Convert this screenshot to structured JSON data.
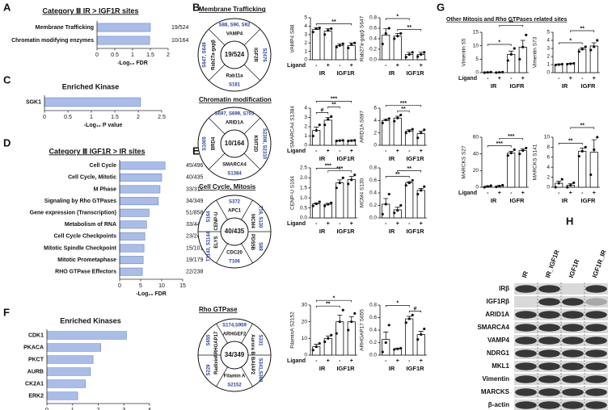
{
  "panel_labels": [
    "A",
    "B",
    "C",
    "D",
    "E",
    "F",
    "G",
    "H"
  ],
  "g_title": "Other Mitosis and Rho GTPases related sites",
  "chart_data": [
    {
      "type": "hbar",
      "title": "Category Ⅲ IR > IGF1R sites",
      "categories": [
        "Membrane Trafficking",
        "Chromatin modifying enzymes"
      ],
      "values": [
        1.5,
        1.48
      ],
      "counts": [
        "19/524",
        "10/164"
      ],
      "xlim": [
        0,
        2
      ],
      "xticks": [
        0,
        0.5,
        1,
        1.5,
        2
      ],
      "x_label": "-Log₁₀ FDR",
      "color": "#a9bde8"
    },
    {
      "type": "hbar",
      "title": "Enriched Kinase",
      "categories": [
        "SGK1"
      ],
      "values": [
        2.05
      ],
      "xlim": [
        0,
        2.5
      ],
      "xticks": [
        0,
        0.5,
        1,
        1.5,
        2,
        2.5
      ],
      "x_label": "-Log₁₀ P value",
      "color": "#a9bde8"
    },
    {
      "type": "hbar",
      "title": "Category Ⅲ IGF1R > IR sites",
      "categories": [
        "Cell Cycle",
        "Cell Cycle, Mitotic",
        "M Phase",
        "Signaling by Rho GTPases",
        "Gene expression (Transcription)",
        "Metabolism of RNA",
        "Cell Cycle Checkpoints",
        "Mitotic Spindle Checkpoint",
        "Mitotic Prometaphase",
        "RHO GTPase Effectors"
      ],
      "values": [
        10.8,
        10,
        9.6,
        9.2,
        7,
        6.4,
        6,
        5.8,
        5.6,
        5.4
      ],
      "counts": [
        "45/496",
        "40/435",
        "33/317",
        "34/349",
        "51/858",
        "33/448",
        "23/240",
        "15/101",
        "19/179",
        "22/238"
      ],
      "xlim": [
        0,
        15
      ],
      "xticks": [
        0,
        5,
        10,
        15
      ],
      "x_label": "-Log₁₀ FDR",
      "color": "#a9bde8"
    },
    {
      "type": "hbar",
      "title": "Enriched Kinases",
      "categories": [
        "CDK1",
        "PKACA",
        "PKCT",
        "AURB",
        "CK2A1",
        "ERK2"
      ],
      "values": [
        3.1,
        2.1,
        1.8,
        1.7,
        1.5,
        1.2
      ],
      "xlim": [
        0,
        4
      ],
      "xticks": [
        0,
        1,
        2,
        3,
        4
      ],
      "x_label": "-Log₁₀ P value",
      "color": "#a9bde8"
    },
    {
      "type": "bar",
      "y_label": "VAMP4 S88",
      "row_label": "Ligand",
      "categories": [
        "-",
        "+",
        "-",
        "+"
      ],
      "groups": [
        "IR",
        "IGF1R"
      ],
      "values": [
        3.6,
        3.4,
        1.7,
        1.7
      ],
      "errors": [
        0.2,
        0.3,
        0.2,
        0.3
      ],
      "points": [
        [
          3.3,
          3.7,
          3.8
        ],
        [
          3.0,
          3.5,
          3.7
        ],
        [
          1.5,
          1.7,
          1.9
        ],
        [
          1.4,
          1.8,
          2.0
        ]
      ],
      "ylim": [
        0,
        5
      ],
      "yticks": [
        0,
        1,
        2,
        3,
        4,
        5
      ],
      "color": "#ffffff",
      "significance": [
        {
          "text": "**",
          "from": 0,
          "to": 3
        }
      ]
    },
    {
      "type": "bar",
      "y_label": "Rab27a-gapβ S647",
      "categories": [
        "-",
        "+",
        "-",
        "+"
      ],
      "groups": [
        "IR",
        "IGF1R"
      ],
      "values": [
        0.47,
        0.45,
        0.1,
        0.1
      ],
      "errors": [
        0.12,
        0.05,
        0.04,
        0.04
      ],
      "points": [
        [
          0.3,
          0.5,
          0.6
        ],
        [
          0.4,
          0.45,
          0.5
        ],
        [
          0.05,
          0.1,
          0.14
        ],
        [
          0.06,
          0.1,
          0.14
        ]
      ],
      "ylim": [
        0,
        0.8
      ],
      "yticks": [
        {
          "value": 0,
          "label": "0.0"
        },
        0.2,
        0.4,
        0.6,
        0.8
      ],
      "color": "#ffffff",
      "significance": [
        {
          "text": "**",
          "from": 1,
          "to": 3
        },
        {
          "text": "*",
          "from": 0,
          "to": 2
        }
      ]
    },
    {
      "type": "bar",
      "y_label": "SMARCA4 S1384",
      "row_label": "Ligand",
      "categories": [
        "-",
        "+",
        "-",
        "+"
      ],
      "groups": [
        "IR",
        "IGF1R"
      ],
      "values": [
        1.6,
        2.7,
        0.5,
        0.5
      ],
      "errors": [
        0.35,
        0.3,
        0.03,
        0.03
      ],
      "points": [
        [
          1.0,
          1.6,
          2.2
        ],
        [
          2.2,
          2.8,
          3.1
        ],
        [
          0.47,
          0.5,
          0.53
        ],
        [
          0.47,
          0.5,
          0.53
        ]
      ],
      "ylim": [
        0,
        4
      ],
      "yticks": [
        0,
        1,
        2,
        3,
        4
      ],
      "color": "#ffffff",
      "significance": [
        {
          "text": "#",
          "from": 0,
          "to": 1
        },
        {
          "text": "**",
          "from": 1,
          "to": 2
        },
        {
          "text": "***",
          "from": 0,
          "to": 3
        }
      ]
    },
    {
      "type": "bar",
      "y_label": "ARID1A S697",
      "categories": [
        "-",
        "+",
        "-",
        "+"
      ],
      "groups": [
        "IR",
        "IGF1R"
      ],
      "values": [
        4,
        4.4,
        2.3,
        1.9
      ],
      "errors": [
        0.2,
        0.3,
        0.2,
        0.4
      ],
      "points": [
        [
          3.6,
          4.1,
          4.3
        ],
        [
          3.9,
          4.4,
          4.9
        ],
        [
          2.0,
          2.3,
          2.6
        ],
        [
          1.2,
          2.0,
          2.5
        ]
      ],
      "ylim": [
        0,
        6
      ],
      "yticks": [
        0,
        2,
        4,
        6
      ],
      "color": "#ffffff",
      "significance": [
        {
          "text": "**",
          "from": 1,
          "to": 2
        },
        {
          "text": "***",
          "from": 0,
          "to": 3
        }
      ]
    },
    {
      "type": "bar",
      "y_label": "CENP-U S164",
      "row_label": "Ligand",
      "categories": [
        "-",
        "+",
        "-",
        "+"
      ],
      "groups": [
        "IR",
        "IGF1R"
      ],
      "values": [
        0.7,
        0.68,
        1.75,
        1.92
      ],
      "errors": [
        0.05,
        0.05,
        0.15,
        0.15
      ],
      "points": [
        [
          0.6,
          0.7,
          0.8
        ],
        [
          0.6,
          0.68,
          0.75
        ],
        [
          1.5,
          1.75,
          2.0
        ],
        [
          1.7,
          1.9,
          2.15
        ]
      ],
      "ylim": [
        0,
        2.5
      ],
      "yticks": [
        {
          "value": 0,
          "label": "0.0"
        },
        0.5,
        {
          "value": 1,
          "label": "1.0"
        },
        1.5,
        {
          "value": 2,
          "label": "2.0"
        },
        2.5
      ],
      "color": "#ffffff",
      "significance": [
        {
          "text": "***",
          "from": 1,
          "to": 3
        },
        {
          "text": "***",
          "from": 0,
          "to": 2
        }
      ]
    },
    {
      "type": "bar",
      "y_label": "MCM4 S130",
      "categories": [
        "-",
        "+",
        "-",
        "+"
      ],
      "groups": [
        "IR",
        "IGF1R"
      ],
      "values": [
        0.22,
        0.13,
        0.56,
        0.44
      ],
      "errors": [
        0.09,
        0.04,
        0.02,
        0.03
      ],
      "points": [
        [
          0.06,
          0.22,
          0.38
        ],
        [
          0.08,
          0.12,
          0.2
        ],
        [
          0.52,
          0.56,
          0.6
        ],
        [
          0.38,
          0.44,
          0.5
        ]
      ],
      "ylim": [
        0,
        0.8
      ],
      "yticks": [
        {
          "value": 0,
          "label": "0.0"
        },
        0.2,
        0.4,
        0.6,
        0.8
      ],
      "color": "#ffffff",
      "significance": [
        {
          "text": "**",
          "from": 0,
          "to": 2
        },
        {
          "text": "**",
          "from": 1,
          "to": 3
        }
      ]
    },
    {
      "type": "bar",
      "y_label": "FilaminA S2152",
      "row_label": "Ligand",
      "categories": [
        "-",
        "+",
        "-",
        "+"
      ],
      "groups": [
        "IR",
        "IGF1R"
      ],
      "values": [
        5,
        10,
        20,
        20
      ],
      "errors": [
        1.5,
        1.5,
        4,
        3
      ],
      "points": [
        [
          3,
          5,
          7
        ],
        [
          8,
          10,
          12
        ],
        [
          13,
          20,
          27
        ],
        [
          15,
          20,
          25
        ]
      ],
      "ylim": [
        0,
        30
      ],
      "yticks": [
        0,
        10,
        20,
        30
      ],
      "color": "#ffffff",
      "significance": [
        {
          "text": "**",
          "from": 0,
          "to": 2
        },
        {
          "text": "*",
          "from": 0,
          "to": 3
        }
      ]
    },
    {
      "type": "bar",
      "y_label": "ARHGAP17 S655",
      "categories": [
        "-",
        "+",
        "-",
        "+"
      ],
      "groups": [
        "IR",
        "IGF1R"
      ],
      "values": [
        0.25,
        0.1,
        0.58,
        0.33
      ],
      "errors": [
        0.12,
        0.01,
        0.04,
        0.05
      ],
      "points": [
        [
          0.05,
          0.2,
          0.48
        ],
        [
          0.09,
          0.1,
          0.11
        ],
        [
          0.52,
          0.58,
          0.64
        ],
        [
          0.25,
          0.33,
          0.42
        ]
      ],
      "ylim": [
        0,
        0.8
      ],
      "yticks": [
        {
          "value": 0,
          "label": "0.0"
        },
        0.2,
        0.4,
        0.6,
        0.8
      ],
      "color": "#ffffff",
      "significance": [
        {
          "text": "#",
          "from": 2,
          "to": 3
        },
        {
          "text": "*",
          "from": 0,
          "to": 2
        }
      ]
    },
    {
      "type": "bar",
      "y_label": "Vimentin S5",
      "row_label": "Ligand",
      "categories": [
        "-",
        "+",
        "-",
        "+"
      ],
      "groups": [
        "IR",
        "IGFR"
      ],
      "values": [
        0.1,
        0.1,
        6.8,
        9.5
      ],
      "errors": [
        0.1,
        0.1,
        1.2,
        2.5
      ],
      "points": [
        [
          0,
          0.1,
          0.2
        ],
        [
          0,
          0.1,
          0.2
        ],
        [
          4.5,
          6.8,
          9
        ],
        [
          5,
          9.5,
          14
        ]
      ],
      "ylim": [
        0,
        15
      ],
      "yticks": [
        0,
        5,
        10,
        15
      ],
      "color": "#ffffff",
      "significance": [
        {
          "text": "*",
          "from": 0,
          "to": 2
        },
        {
          "text": "**",
          "from": 1,
          "to": 3
        }
      ]
    },
    {
      "type": "bar",
      "y_label": "Vimentin S73",
      "categories": [
        "-",
        "+",
        "-",
        "+"
      ],
      "groups": [
        "IR",
        "IGFR"
      ],
      "values": [
        1,
        1.1,
        2.9,
        3.3
      ],
      "errors": [
        0.05,
        0.05,
        0.2,
        0.4
      ],
      "points": [
        [
          0.95,
          1,
          1.05
        ],
        [
          1.05,
          1.1,
          1.15
        ],
        [
          2.6,
          2.9,
          3.2
        ],
        [
          2.8,
          3.2,
          4
        ]
      ],
      "ylim": [
        0,
        5
      ],
      "yticks": [
        0,
        1,
        2,
        3,
        4,
        5
      ],
      "color": "#ffffff",
      "significance": [
        {
          "text": "*",
          "from": 0,
          "to": 2
        },
        {
          "text": "**",
          "from": 1,
          "to": 3
        }
      ]
    },
    {
      "type": "bar",
      "y_label": "MARCKS S27",
      "row_label": "Ligand",
      "categories": [
        "-",
        "+",
        "-",
        "+"
      ],
      "groups": [
        "IR",
        "IGFR"
      ],
      "values": [
        1,
        1.5,
        41,
        44
      ],
      "errors": [
        0.5,
        0.5,
        2,
        2
      ],
      "points": [
        [
          0,
          1,
          2
        ],
        [
          0.5,
          1.5,
          2.5
        ],
        [
          38,
          41,
          45
        ],
        [
          40,
          44,
          47
        ]
      ],
      "ylim": [
        0,
        60
      ],
      "yticks": [
        0,
        20,
        40,
        60
      ],
      "color": "#ffffff",
      "significance": [
        {
          "text": "***",
          "from": 0,
          "to": 2
        },
        {
          "text": "***",
          "from": 1,
          "to": 3
        }
      ]
    },
    {
      "type": "bar",
      "y_label": "MARCKS S141",
      "categories": [
        "-",
        "+",
        "-",
        "+"
      ],
      "groups": [
        "IR",
        "IGFR"
      ],
      "values": [
        0.8,
        0.4,
        7.2,
        7
      ],
      "errors": [
        0.4,
        0.3,
        0.6,
        2.5
      ],
      "points": [
        [
          0,
          0.8,
          1.6
        ],
        [
          0,
          0.4,
          0.9
        ],
        [
          6.2,
          7.2,
          8
        ],
        [
          2.5,
          7.5,
          10
        ]
      ],
      "ylim": [
        0,
        10
      ],
      "yticks": [
        0,
        2,
        4,
        6,
        8,
        10
      ],
      "color": "#ffffff",
      "significance": [
        {
          "text": "**",
          "from": 0,
          "to": 2
        },
        {
          "text": "**",
          "from": 1,
          "to": 3
        }
      ]
    }
  ],
  "diagrams": [
    {
      "title": "Membrane Trafficking",
      "center": "19/524",
      "items": [
        {
          "name": "VAMP4",
          "sites": "S88, S90, S92"
        },
        {
          "name": "IGF2R",
          "sites": "S2476"
        },
        {
          "name": "Rab11a",
          "sites": "S181"
        },
        {
          "name": "Rab27a-gapβ",
          "sites": "S647, S649"
        }
      ]
    },
    {
      "title": "Chromatin modification",
      "center": "10/164",
      "items": [
        {
          "name": "ARID1A",
          "sites": "S697, S699, S703"
        },
        {
          "name": "KMT2D",
          "sites": "S2308, S2310"
        },
        {
          "name": "SMARCA4",
          "sites": "S1384"
        },
        {
          "name": "BRD4",
          "sites": "S1005"
        }
      ]
    },
    {
      "title": "Cell Cycle, Mitosis",
      "center": "40/435",
      "items": [
        {
          "name": "APC1",
          "sites": "S372"
        },
        {
          "name": "MCM4",
          "sites": "T19, S130"
        },
        {
          "name": "PDS5B",
          "sites": "S88"
        },
        {
          "name": "CDC20",
          "sites": "T106"
        },
        {
          "name": "ELYS",
          "sites": "T1143, S1144"
        },
        {
          "name": "CENP-U",
          "sites": "S164"
        }
      ]
    },
    {
      "title": "Rho GTPase",
      "center": "34/349",
      "items": [
        {
          "name": "ARHGEF2",
          "sites": "S174,S959"
        },
        {
          "name": "Aurora B",
          "sites": "S331"
        },
        {
          "name": "BAIAP2",
          "sites": "S341,S360"
        },
        {
          "name": "Filamin A",
          "sites": "S2152"
        },
        {
          "name": "Radixin",
          "sites": "S229"
        },
        {
          "name": "ARHGAP17",
          "sites": "S655"
        }
      ]
    }
  ],
  "blot": {
    "lanes": [
      "IR",
      "IR_IGF1R",
      "IGF1R",
      "IGF1R_IR"
    ],
    "rows": [
      "IRβ",
      "IGF1Rβ",
      "ARID1A",
      "SMARCA4",
      "VAMP4",
      "NDRG1",
      "MKL1",
      "Vimentin",
      "MARCKS",
      "β-actin"
    ]
  }
}
